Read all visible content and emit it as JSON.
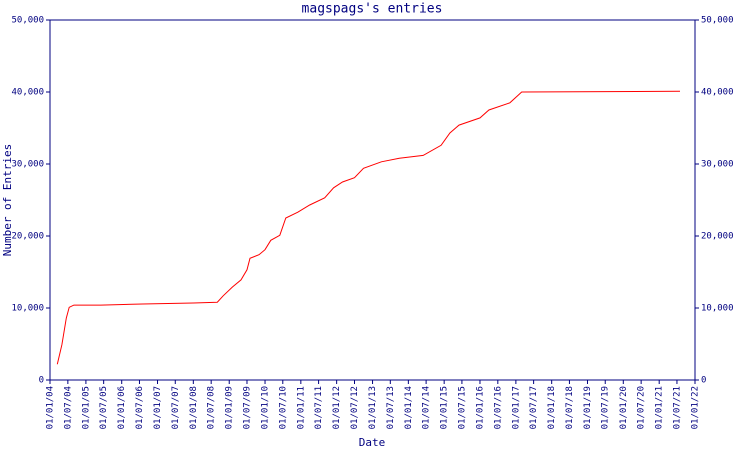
{
  "chart_data": {
    "type": "line",
    "title": "magspags's entries",
    "x_label": "Date",
    "y_label": "Number of Entries",
    "x": [
      "2004-03-15",
      "2004-05-01",
      "2004-06-15",
      "2004-07-15",
      "2004-09-01",
      "2005-06-01",
      "2006-08-01",
      "2008-01-01",
      "2008-09-01",
      "2008-11-01",
      "2009-02-01",
      "2009-05-01",
      "2009-07-01",
      "2009-08-01",
      "2009-11-01",
      "2010-01-01",
      "2010-03-01",
      "2010-06-01",
      "2010-08-01",
      "2010-12-01",
      "2011-04-01",
      "2011-09-01",
      "2011-12-01",
      "2012-03-01",
      "2012-07-01",
      "2012-10-01",
      "2013-04-01",
      "2013-10-01",
      "2014-06-01",
      "2014-12-01",
      "2015-03-01",
      "2015-06-01",
      "2016-01-01",
      "2016-04-01",
      "2016-11-01",
      "2017-03-01",
      "2021-08-01"
    ],
    "series": [
      {
        "name": "Entries",
        "color": "#ff0000",
        "values": [
          2200,
          4900,
          8600,
          10100,
          10400,
          10400,
          10550,
          10700,
          10800,
          11700,
          12900,
          13900,
          15300,
          16900,
          17400,
          18100,
          19400,
          20100,
          22500,
          23300,
          24300,
          25300,
          26700,
          27500,
          28100,
          29400,
          30300,
          30800,
          31200,
          32600,
          34300,
          35400,
          36400,
          37500,
          38500,
          40000,
          40100
        ]
      }
    ],
    "xlim": [
      "2004-01-01",
      "2022-01-01"
    ],
    "xticks": [
      {
        "value": "2004-01-01",
        "label": "01/01/04"
      },
      {
        "value": "2004-07-01",
        "label": "01/07/04"
      },
      {
        "value": "2005-01-01",
        "label": "01/01/05"
      },
      {
        "value": "2005-07-01",
        "label": "01/07/05"
      },
      {
        "value": "2006-01-01",
        "label": "01/01/06"
      },
      {
        "value": "2006-07-01",
        "label": "01/07/06"
      },
      {
        "value": "2007-01-01",
        "label": "01/01/07"
      },
      {
        "value": "2007-07-01",
        "label": "01/07/07"
      },
      {
        "value": "2008-01-01",
        "label": "01/01/08"
      },
      {
        "value": "2008-07-01",
        "label": "01/07/08"
      },
      {
        "value": "2009-01-01",
        "label": "01/01/09"
      },
      {
        "value": "2009-07-01",
        "label": "01/07/09"
      },
      {
        "value": "2010-01-01",
        "label": "01/01/10"
      },
      {
        "value": "2010-07-01",
        "label": "01/07/10"
      },
      {
        "value": "2011-01-01",
        "label": "01/01/11"
      },
      {
        "value": "2011-07-01",
        "label": "01/07/11"
      },
      {
        "value": "2012-01-01",
        "label": "01/01/12"
      },
      {
        "value": "2012-07-01",
        "label": "01/07/12"
      },
      {
        "value": "2013-01-01",
        "label": "01/01/13"
      },
      {
        "value": "2013-07-01",
        "label": "01/07/13"
      },
      {
        "value": "2014-01-01",
        "label": "01/01/14"
      },
      {
        "value": "2014-07-01",
        "label": "01/07/14"
      },
      {
        "value": "2015-01-01",
        "label": "01/01/15"
      },
      {
        "value": "2015-07-01",
        "label": "01/07/15"
      },
      {
        "value": "2016-01-01",
        "label": "01/01/16"
      },
      {
        "value": "2016-07-01",
        "label": "01/07/16"
      },
      {
        "value": "2017-01-01",
        "label": "01/01/17"
      },
      {
        "value": "2017-07-01",
        "label": "01/07/17"
      },
      {
        "value": "2018-01-01",
        "label": "01/01/18"
      },
      {
        "value": "2018-07-01",
        "label": "01/07/18"
      },
      {
        "value": "2019-01-01",
        "label": "01/01/19"
      },
      {
        "value": "2019-07-01",
        "label": "01/07/19"
      },
      {
        "value": "2020-01-01",
        "label": "01/01/20"
      },
      {
        "value": "2020-07-01",
        "label": "01/07/20"
      },
      {
        "value": "2021-01-01",
        "label": "01/01/21"
      },
      {
        "value": "2021-07-01",
        "label": "01/07/21"
      },
      {
        "value": "2022-01-01",
        "label": "01/01/22"
      }
    ],
    "ylim": [
      0,
      50000
    ],
    "yticks": [
      0,
      {
        "value": 10000,
        "label": "10,000"
      },
      {
        "value": 20000,
        "label": "20,000"
      },
      {
        "value": 30000,
        "label": "30,000"
      },
      {
        "value": 40000,
        "label": "40,000"
      },
      {
        "value": 50000,
        "label": "50,000"
      }
    ],
    "axis_color": "#000080"
  }
}
